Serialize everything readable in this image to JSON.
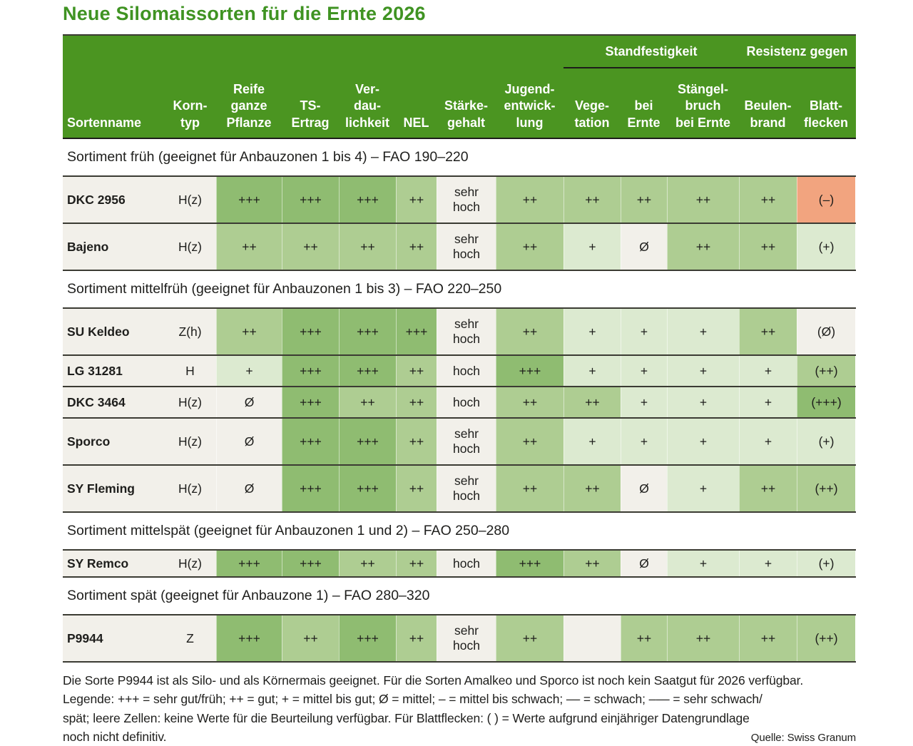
{
  "chart_data": {
    "type": "table",
    "title": "Neue Silomaissorten für die Ernte 2026",
    "column_groups": [
      {
        "label": "Standfestigkeit",
        "spans": [
          "Vege-tation",
          "bei Ernte",
          "Stängel-bruch bei Ernte"
        ]
      },
      {
        "label": "Resistenz gegen",
        "spans": [
          "Beulen-brand",
          "Blatt-flecken"
        ]
      }
    ],
    "columns": [
      "Sortenname",
      "Korn-\ntyp",
      "Reife\nganze\nPflanze",
      "TS-\nErtrag",
      "Ver-\ndau-\nlichkeit",
      "NEL",
      "Stärke-\ngehalt",
      "Jugend-\nentwick-\nlung",
      "Vege-\ntation",
      "bei\nErnte",
      "Stängel-\nbruch\nbei Ernte",
      "Beulen-\nbrand",
      "Blatt-\nflecken"
    ],
    "sections": [
      {
        "heading": "Sortiment früh (geeignet für Anbauzonen 1 bis 4) – FAO 190–220",
        "rows": [
          {
            "name": "DKC 2956",
            "korntyp": "H(z)",
            "size": "tall",
            "cells": [
              [
                "+++",
                "dark"
              ],
              [
                "+++",
                "dark"
              ],
              [
                "+++",
                "dark"
              ],
              [
                "++",
                "medium"
              ],
              [
                "sehr hoch",
                "neutral"
              ],
              [
                "++",
                "medium"
              ],
              [
                "++",
                "medium"
              ],
              [
                "++",
                "medium"
              ],
              [
                "++",
                "medium"
              ],
              [
                "++",
                "medium"
              ],
              [
                "(–)",
                "negative"
              ]
            ]
          },
          {
            "name": "Bajeno",
            "korntyp": "H(z)",
            "size": "tall",
            "cells": [
              [
                "++",
                "medium"
              ],
              [
                "++",
                "medium"
              ],
              [
                "++",
                "medium"
              ],
              [
                "++",
                "medium"
              ],
              [
                "sehr hoch",
                "neutral"
              ],
              [
                "++",
                "medium"
              ],
              [
                "+",
                "light"
              ],
              [
                "Ø",
                "neutral"
              ],
              [
                "++",
                "medium"
              ],
              [
                "++",
                "medium"
              ],
              [
                "(+)",
                "light"
              ]
            ]
          }
        ]
      },
      {
        "heading": "Sortiment mittelfrüh (geeignet für Anbauzonen 1 bis 3) – FAO 220–250",
        "rows": [
          {
            "name": "SU Keldeo",
            "korntyp": "Z(h)",
            "size": "tall",
            "cells": [
              [
                "++",
                "medium"
              ],
              [
                "+++",
                "dark"
              ],
              [
                "+++",
                "dark"
              ],
              [
                "+++",
                "dark"
              ],
              [
                "sehr hoch",
                "neutral"
              ],
              [
                "++",
                "medium"
              ],
              [
                "+",
                "light"
              ],
              [
                "+",
                "light"
              ],
              [
                "+",
                "light"
              ],
              [
                "++",
                "medium"
              ],
              [
                "(Ø)",
                "neutral"
              ]
            ]
          },
          {
            "name": "LG 31281",
            "korntyp": "H",
            "size": "short",
            "cells": [
              [
                "+",
                "light"
              ],
              [
                "+++",
                "dark"
              ],
              [
                "+++",
                "dark"
              ],
              [
                "++",
                "medium"
              ],
              [
                "hoch",
                "neutral"
              ],
              [
                "+++",
                "dark"
              ],
              [
                "+",
                "light"
              ],
              [
                "+",
                "light"
              ],
              [
                "+",
                "light"
              ],
              [
                "+",
                "light"
              ],
              [
                "(++)",
                "medium"
              ]
            ]
          },
          {
            "name": "DKC 3464",
            "korntyp": "H(z)",
            "size": "short",
            "cells": [
              [
                "Ø",
                "neutral"
              ],
              [
                "+++",
                "dark"
              ],
              [
                "++",
                "medium"
              ],
              [
                "++",
                "medium"
              ],
              [
                "hoch",
                "neutral"
              ],
              [
                "++",
                "medium"
              ],
              [
                "++",
                "medium"
              ],
              [
                "+",
                "light"
              ],
              [
                "+",
                "light"
              ],
              [
                "+",
                "light"
              ],
              [
                "(+++)",
                "dark"
              ]
            ]
          },
          {
            "name": "Sporco",
            "korntyp": "H(z)",
            "size": "tall",
            "cells": [
              [
                "Ø",
                "neutral"
              ],
              [
                "+++",
                "dark"
              ],
              [
                "+++",
                "dark"
              ],
              [
                "++",
                "medium"
              ],
              [
                "sehr hoch",
                "neutral"
              ],
              [
                "++",
                "medium"
              ],
              [
                "+",
                "light"
              ],
              [
                "+",
                "light"
              ],
              [
                "+",
                "light"
              ],
              [
                "+",
                "light"
              ],
              [
                "(+)",
                "light"
              ]
            ]
          },
          {
            "name": "SY Fleming",
            "korntyp": "H(z)",
            "size": "tall",
            "cells": [
              [
                "Ø",
                "neutral"
              ],
              [
                "+++",
                "dark"
              ],
              [
                "+++",
                "dark"
              ],
              [
                "++",
                "medium"
              ],
              [
                "sehr hoch",
                "neutral"
              ],
              [
                "++",
                "medium"
              ],
              [
                "++",
                "medium"
              ],
              [
                "Ø",
                "neutral"
              ],
              [
                "+",
                "light"
              ],
              [
                "++",
                "medium"
              ],
              [
                "(++)",
                "medium"
              ]
            ]
          }
        ]
      },
      {
        "heading": "Sortiment mittelspät (geeignet für Anbauzonen 1 und 2) – FAO 250–280",
        "rows": [
          {
            "name": "SY Remco",
            "korntyp": "H(z)",
            "size": "xshort",
            "cells": [
              [
                "+++",
                "dark"
              ],
              [
                "+++",
                "dark"
              ],
              [
                "++",
                "medium"
              ],
              [
                "++",
                "medium"
              ],
              [
                "hoch",
                "neutral"
              ],
              [
                "+++",
                "dark"
              ],
              [
                "++",
                "medium"
              ],
              [
                "Ø",
                "neutral"
              ],
              [
                "+",
                "light"
              ],
              [
                "+",
                "light"
              ],
              [
                "(+)",
                "light"
              ]
            ]
          }
        ]
      },
      {
        "heading": "Sortiment spät (geeignet für Anbauzone 1) – FAO 280–320",
        "rows": [
          {
            "name": "P9944",
            "korntyp": "Z",
            "size": "tall",
            "cells": [
              [
                "+++",
                "dark"
              ],
              [
                "++",
                "medium"
              ],
              [
                "+++",
                "dark"
              ],
              [
                "++",
                "medium"
              ],
              [
                "sehr hoch",
                "neutral"
              ],
              [
                "++",
                "medium"
              ],
              [
                "",
                "neutral"
              ],
              [
                "++",
                "medium"
              ],
              [
                "++",
                "medium"
              ],
              [
                "++",
                "medium"
              ],
              [
                "(++)",
                "medium"
              ]
            ]
          }
        ]
      }
    ],
    "legend_note": "Die Sorte P9944 ist als Silo- und als Körnermais geeignet. Für die Sorten Amalkeo und Sporco ist noch kein Saatgut für 2026 verfügbar.\nLegende: +++ = sehr gut/früh; ++ = gut; + = mittel bis gut; Ø = mittel; – = mittel bis schwach; –– = schwach; ––– = sehr schwach/\nspät; leere Zellen: keine Werte für die Beurteilung verfügbar. Für Blattflecken: ( ) = Werte aufgrund einjähriger Datengrundlage",
    "legend_note_last_line": "noch nicht definitiv.",
    "source": "Quelle: Swiss Granum"
  },
  "colors": {
    "header_green": "#4b9521",
    "title_green": "#3f9322",
    "dark": "#8fbc71",
    "medium": "#aecd92",
    "light": "#dcead0",
    "neutral": "#f2f0ea",
    "negative": "#f2a47f",
    "border": "#3b3b33",
    "text": "#1e1e1c"
  }
}
